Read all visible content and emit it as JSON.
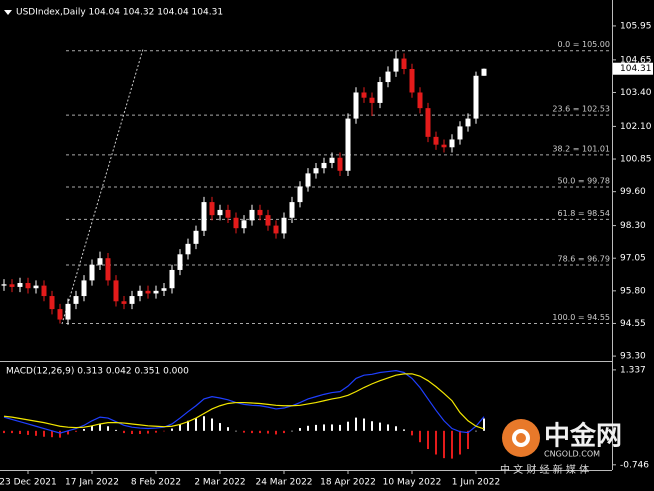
{
  "chart_data": [
    {
      "type": "candlestick",
      "title": "USDIndex,Daily  104.04 104.32 104.04 104.31",
      "categories": [
        null,
        null,
        null,
        "23 Dec 2021",
        null,
        null,
        null,
        null,
        null,
        null,
        null,
        "17 Jan 2022",
        null,
        null,
        null,
        null,
        null,
        null,
        null,
        "8 Feb 2022",
        null,
        null,
        null,
        null,
        null,
        null,
        null,
        "2 Mar 2022",
        null,
        null,
        null,
        null,
        null,
        null,
        null,
        "24 Mar 2022",
        null,
        null,
        null,
        null,
        null,
        null,
        null,
        "18 Apr 2022",
        null,
        null,
        null,
        null,
        null,
        null,
        null,
        "10 May 2022",
        null,
        null,
        null,
        null,
        null,
        null,
        null,
        "1 Jun 2022",
        null
      ],
      "open": [
        96.0,
        96.05,
        95.95,
        96.1,
        95.9,
        96.0,
        95.6,
        95.1,
        94.7,
        95.3,
        95.6,
        96.2,
        96.8,
        97.05,
        96.2,
        95.4,
        95.3,
        95.6,
        95.8,
        95.7,
        95.8,
        95.9,
        96.6,
        97.2,
        97.6,
        98.1,
        99.2,
        98.7,
        98.9,
        98.6,
        98.2,
        98.5,
        98.9,
        98.7,
        98.3,
        98.0,
        98.6,
        99.2,
        99.8,
        100.3,
        100.5,
        100.7,
        100.9,
        100.4,
        102.4,
        103.4,
        103.2,
        103.0,
        103.8,
        104.2,
        104.7,
        104.3,
        103.4,
        102.8,
        101.7,
        101.4,
        101.3,
        101.6,
        102.1,
        102.4,
        104.04
      ],
      "high": [
        96.25,
        96.25,
        96.3,
        96.3,
        96.2,
        96.2,
        95.8,
        95.3,
        95.5,
        95.8,
        96.4,
        97.0,
        97.3,
        97.25,
        96.4,
        95.6,
        95.8,
        96.0,
        96.0,
        96.0,
        96.1,
        96.8,
        97.4,
        97.8,
        98.3,
        99.4,
        99.4,
        99.1,
        99.1,
        98.8,
        98.7,
        99.1,
        99.1,
        98.9,
        98.5,
        98.8,
        99.4,
        100.0,
        100.5,
        100.7,
        100.9,
        101.1,
        101.1,
        102.6,
        103.6,
        103.6,
        103.4,
        104.0,
        104.4,
        105.0,
        104.9,
        104.5,
        103.6,
        103.0,
        101.9,
        101.6,
        101.8,
        102.3,
        102.6,
        104.2,
        104.32
      ],
      "low": [
        95.8,
        95.75,
        95.75,
        95.7,
        95.7,
        95.4,
        94.9,
        94.55,
        94.5,
        95.1,
        95.4,
        96.0,
        96.6,
        96.0,
        95.2,
        95.1,
        95.1,
        95.4,
        95.5,
        95.5,
        95.6,
        95.7,
        96.4,
        97.0,
        97.4,
        97.9,
        98.5,
        98.5,
        98.4,
        98.0,
        98.0,
        98.3,
        98.5,
        98.1,
        97.8,
        97.8,
        98.4,
        99.0,
        99.6,
        100.1,
        100.3,
        100.5,
        100.2,
        100.2,
        102.2,
        103.0,
        102.5,
        102.8,
        103.6,
        104.0,
        104.1,
        103.2,
        102.6,
        101.5,
        101.2,
        101.1,
        101.1,
        101.4,
        101.9,
        102.2,
        104.04
      ],
      "close": [
        96.05,
        95.95,
        96.1,
        95.9,
        96.0,
        95.6,
        95.1,
        94.7,
        95.3,
        95.6,
        96.2,
        96.8,
        97.05,
        96.2,
        95.4,
        95.3,
        95.6,
        95.8,
        95.7,
        95.8,
        95.9,
        96.6,
        97.2,
        97.6,
        98.1,
        99.2,
        98.7,
        98.9,
        98.6,
        98.2,
        98.5,
        98.9,
        98.7,
        98.3,
        98.0,
        98.6,
        99.2,
        99.8,
        100.3,
        100.5,
        100.7,
        100.9,
        100.4,
        102.4,
        103.4,
        103.2,
        103.0,
        103.8,
        104.2,
        104.7,
        104.3,
        103.4,
        102.8,
        101.7,
        101.4,
        101.3,
        101.6,
        102.1,
        102.4,
        104.04,
        104.31
      ],
      "up_color": "#ffffff",
      "down_color": "#e41b1b",
      "ylim": [
        93.15,
        106.79
      ],
      "yticks": [
        105.95,
        104.65,
        {
          "value": 103.4,
          "label": "103.40"
        },
        {
          "value": 102.1,
          "label": "102.10"
        },
        100.85,
        {
          "value": 99.6,
          "label": "99.60"
        },
        {
          "value": 98.3,
          "label": "98.30"
        },
        97.05,
        {
          "value": 95.8,
          "label": "95.80"
        },
        94.55,
        {
          "value": 93.3,
          "label": "93.30"
        }
      ],
      "last_price": 104.31,
      "fib_levels": [
        {
          "label": "0.0 = 105.00",
          "value": 105.0
        },
        {
          "label": "23.6 = 102.53",
          "value": 102.53
        },
        {
          "label": "38.2 = 101.01",
          "value": 101.01
        },
        {
          "label": "50.0 = 99.78",
          "value": 99.78
        },
        {
          "label": "61.8 = 98.54",
          "value": 98.54
        },
        {
          "label": "78.6 = 96.79",
          "value": 96.79
        },
        {
          "label": "100.0 = 94.55",
          "value": 94.55
        }
      ]
    },
    {
      "type": "macd",
      "title": "MACD(12,26,9) 0.313 0.042 0.351 0.000",
      "ylim": [
        -0.86,
        1.51
      ],
      "yticks": [
        1.337,
        -0.746
      ],
      "histogram": {
        "up_color": "#ffffff",
        "down_color": "#e41b1b",
        "values": [
          -0.05,
          -0.05,
          -0.07,
          -0.09,
          -0.11,
          -0.13,
          -0.14,
          -0.15,
          -0.08,
          -0.02,
          0.04,
          0.11,
          0.15,
          0.1,
          0.02,
          -0.05,
          -0.07,
          -0.07,
          -0.06,
          -0.04,
          -0.01,
          0.05,
          0.14,
          0.22,
          0.27,
          0.32,
          0.27,
          0.17,
          0.08,
          0.0,
          -0.04,
          -0.05,
          -0.05,
          -0.06,
          -0.08,
          -0.05,
          0.0,
          0.06,
          0.11,
          0.13,
          0.14,
          0.14,
          0.13,
          0.2,
          0.29,
          0.27,
          0.21,
          0.18,
          0.14,
          0.1,
          0.03,
          -0.1,
          -0.25,
          -0.4,
          -0.52,
          -0.6,
          -0.61,
          -0.52,
          -0.4,
          0.0,
          0.27
        ]
      },
      "series": [
        {
          "color": "#1f3fff",
          "values": [
            0.3,
            0.25,
            0.2,
            0.15,
            0.1,
            0.05,
            0.0,
            -0.05,
            0.0,
            0.05,
            0.12,
            0.22,
            0.3,
            0.28,
            0.2,
            0.12,
            0.08,
            0.06,
            0.05,
            0.06,
            0.08,
            0.15,
            0.28,
            0.42,
            0.55,
            0.7,
            0.75,
            0.72,
            0.68,
            0.62,
            0.58,
            0.56,
            0.55,
            0.52,
            0.48,
            0.5,
            0.55,
            0.62,
            0.7,
            0.75,
            0.8,
            0.84,
            0.86,
            0.98,
            1.15,
            1.22,
            1.24,
            1.28,
            1.3,
            1.32,
            1.28,
            1.15,
            0.95,
            0.7,
            0.45,
            0.22,
            0.05,
            -0.02,
            -0.04,
            0.1,
            0.31
          ]
        },
        {
          "color": "#f2e600",
          "values": [
            0.32,
            0.3,
            0.27,
            0.24,
            0.21,
            0.18,
            0.14,
            0.1,
            0.08,
            0.07,
            0.08,
            0.11,
            0.15,
            0.18,
            0.18,
            0.17,
            0.15,
            0.13,
            0.11,
            0.1,
            0.09,
            0.1,
            0.14,
            0.2,
            0.28,
            0.38,
            0.48,
            0.55,
            0.6,
            0.62,
            0.62,
            0.61,
            0.6,
            0.58,
            0.56,
            0.55,
            0.55,
            0.56,
            0.59,
            0.62,
            0.66,
            0.7,
            0.73,
            0.78,
            0.86,
            0.95,
            1.03,
            1.1,
            1.16,
            1.22,
            1.25,
            1.25,
            1.2,
            1.1,
            0.97,
            0.82,
            0.66,
            0.4,
            0.22,
            0.1,
            0.04
          ]
        }
      ]
    }
  ],
  "watermark": {
    "brand": "中金网",
    "site": "CNGOLD.COM",
    "tagline": "中 文 财 经 新 媒 体"
  }
}
